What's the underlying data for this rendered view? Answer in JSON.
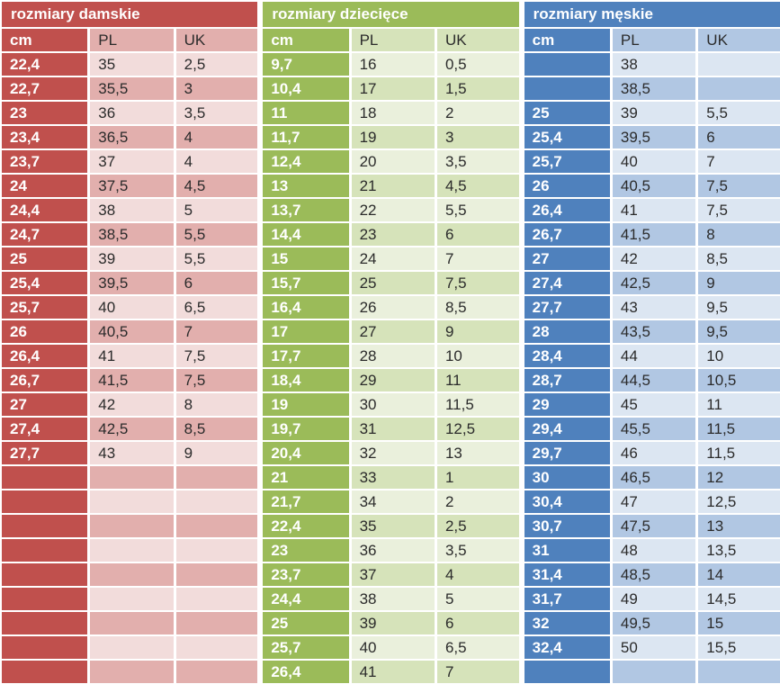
{
  "page": {
    "background": "#FFFFFF",
    "separator_color": "#FFFFFF"
  },
  "chart_data": [
    {
      "type": "table",
      "title": "rozmiary damskie",
      "columns": [
        "cm",
        "PL",
        "UK"
      ],
      "palette": {
        "accent": "#C0504D",
        "band_light": "#F2DCDB",
        "band_medium": "#E2AFAD",
        "title_text": "#FFFFFF",
        "cell_text": "#2B2B2B"
      },
      "rows": [
        [
          "22,4",
          "35",
          "2,5"
        ],
        [
          "22,7",
          "35,5",
          "3"
        ],
        [
          "23",
          "36",
          "3,5"
        ],
        [
          "23,4",
          "36,5",
          "4"
        ],
        [
          "23,7",
          "37",
          "4"
        ],
        [
          "24",
          "37,5",
          "4,5"
        ],
        [
          "24,4",
          "38",
          "5"
        ],
        [
          "24,7",
          "38,5",
          "5,5"
        ],
        [
          "25",
          "39",
          "5,5"
        ],
        [
          "25,4",
          "39,5",
          "6"
        ],
        [
          "25,7",
          "40",
          "6,5"
        ],
        [
          "26",
          "40,5",
          "7"
        ],
        [
          "26,4",
          "41",
          "7,5"
        ],
        [
          "26,7",
          "41,5",
          "7,5"
        ],
        [
          "27",
          "42",
          "8"
        ],
        [
          "27,4",
          "42,5",
          "8,5"
        ],
        [
          "27,7",
          "43",
          "9"
        ]
      ],
      "empty_row_count": 9
    },
    {
      "type": "table",
      "title": "rozmiary dziecięce",
      "columns": [
        "cm",
        "PL",
        "UK"
      ],
      "palette": {
        "accent": "#9BBB59",
        "band_light": "#EAF0DC",
        "band_medium": "#D6E3BA",
        "title_text": "#FFFFFF",
        "cell_text": "#2B2B2B"
      },
      "rows": [
        [
          "9,7",
          "16",
          "0,5"
        ],
        [
          "10,4",
          "17",
          "1,5"
        ],
        [
          "11",
          "18",
          "2"
        ],
        [
          "11,7",
          "19",
          "3"
        ],
        [
          "12,4",
          "20",
          "3,5"
        ],
        [
          "13",
          "21",
          "4,5"
        ],
        [
          "13,7",
          "22",
          "5,5"
        ],
        [
          "14,4",
          "23",
          "6"
        ],
        [
          "15",
          "24",
          "7"
        ],
        [
          "15,7",
          "25",
          "7,5"
        ],
        [
          "16,4",
          "26",
          "8,5"
        ],
        [
          "17",
          "27",
          "9"
        ],
        [
          "17,7",
          "28",
          "10"
        ],
        [
          "18,4",
          "29",
          "11"
        ],
        [
          "19",
          "30",
          "11,5"
        ],
        [
          "19,7",
          "31",
          "12,5"
        ],
        [
          "20,4",
          "32",
          "13"
        ],
        [
          "21",
          "33",
          "1"
        ],
        [
          "21,7",
          "34",
          "2"
        ],
        [
          "22,4",
          "35",
          "2,5"
        ],
        [
          "23",
          "36",
          "3,5"
        ],
        [
          "23,7",
          "37",
          "4"
        ],
        [
          "24,4",
          "38",
          "5"
        ],
        [
          "25",
          "39",
          "6"
        ],
        [
          "25,7",
          "40",
          "6,5"
        ],
        [
          "26,4",
          "41",
          "7"
        ]
      ],
      "empty_row_count": 0
    },
    {
      "type": "table",
      "title": "rozmiary męskie",
      "columns": [
        "cm",
        "PL",
        "UK"
      ],
      "palette": {
        "accent": "#4F81BD",
        "band_light": "#DCE6F2",
        "band_medium": "#B1C7E3",
        "title_text": "#FFFFFF",
        "cell_text": "#2B2B2B"
      },
      "rows": [
        [
          "",
          "38",
          ""
        ],
        [
          "",
          "38,5",
          ""
        ],
        [
          "25",
          "39",
          "5,5"
        ],
        [
          "25,4",
          "39,5",
          "6"
        ],
        [
          "25,7",
          "40",
          "7"
        ],
        [
          "26",
          "40,5",
          "7,5"
        ],
        [
          "26,4",
          "41",
          "7,5"
        ],
        [
          "26,7",
          "41,5",
          "8"
        ],
        [
          "27",
          "42",
          "8,5"
        ],
        [
          "27,4",
          "42,5",
          "9"
        ],
        [
          "27,7",
          "43",
          "9,5"
        ],
        [
          "28",
          "43,5",
          "9,5"
        ],
        [
          "28,4",
          "44",
          "10"
        ],
        [
          "28,7",
          "44,5",
          "10,5"
        ],
        [
          "29",
          "45",
          "11"
        ],
        [
          "29,4",
          "45,5",
          "11,5"
        ],
        [
          "29,7",
          "46",
          "11,5"
        ],
        [
          "30",
          "46,5",
          "12"
        ],
        [
          "30,4",
          "47",
          "12,5"
        ],
        [
          "30,7",
          "47,5",
          "13"
        ],
        [
          "31",
          "48",
          "13,5"
        ],
        [
          "31,4",
          "48,5",
          "14"
        ],
        [
          "31,7",
          "49",
          "14,5"
        ],
        [
          "32",
          "49,5",
          "15"
        ],
        [
          "32,4",
          "50",
          "15,5"
        ]
      ],
      "empty_row_count": 1
    }
  ]
}
